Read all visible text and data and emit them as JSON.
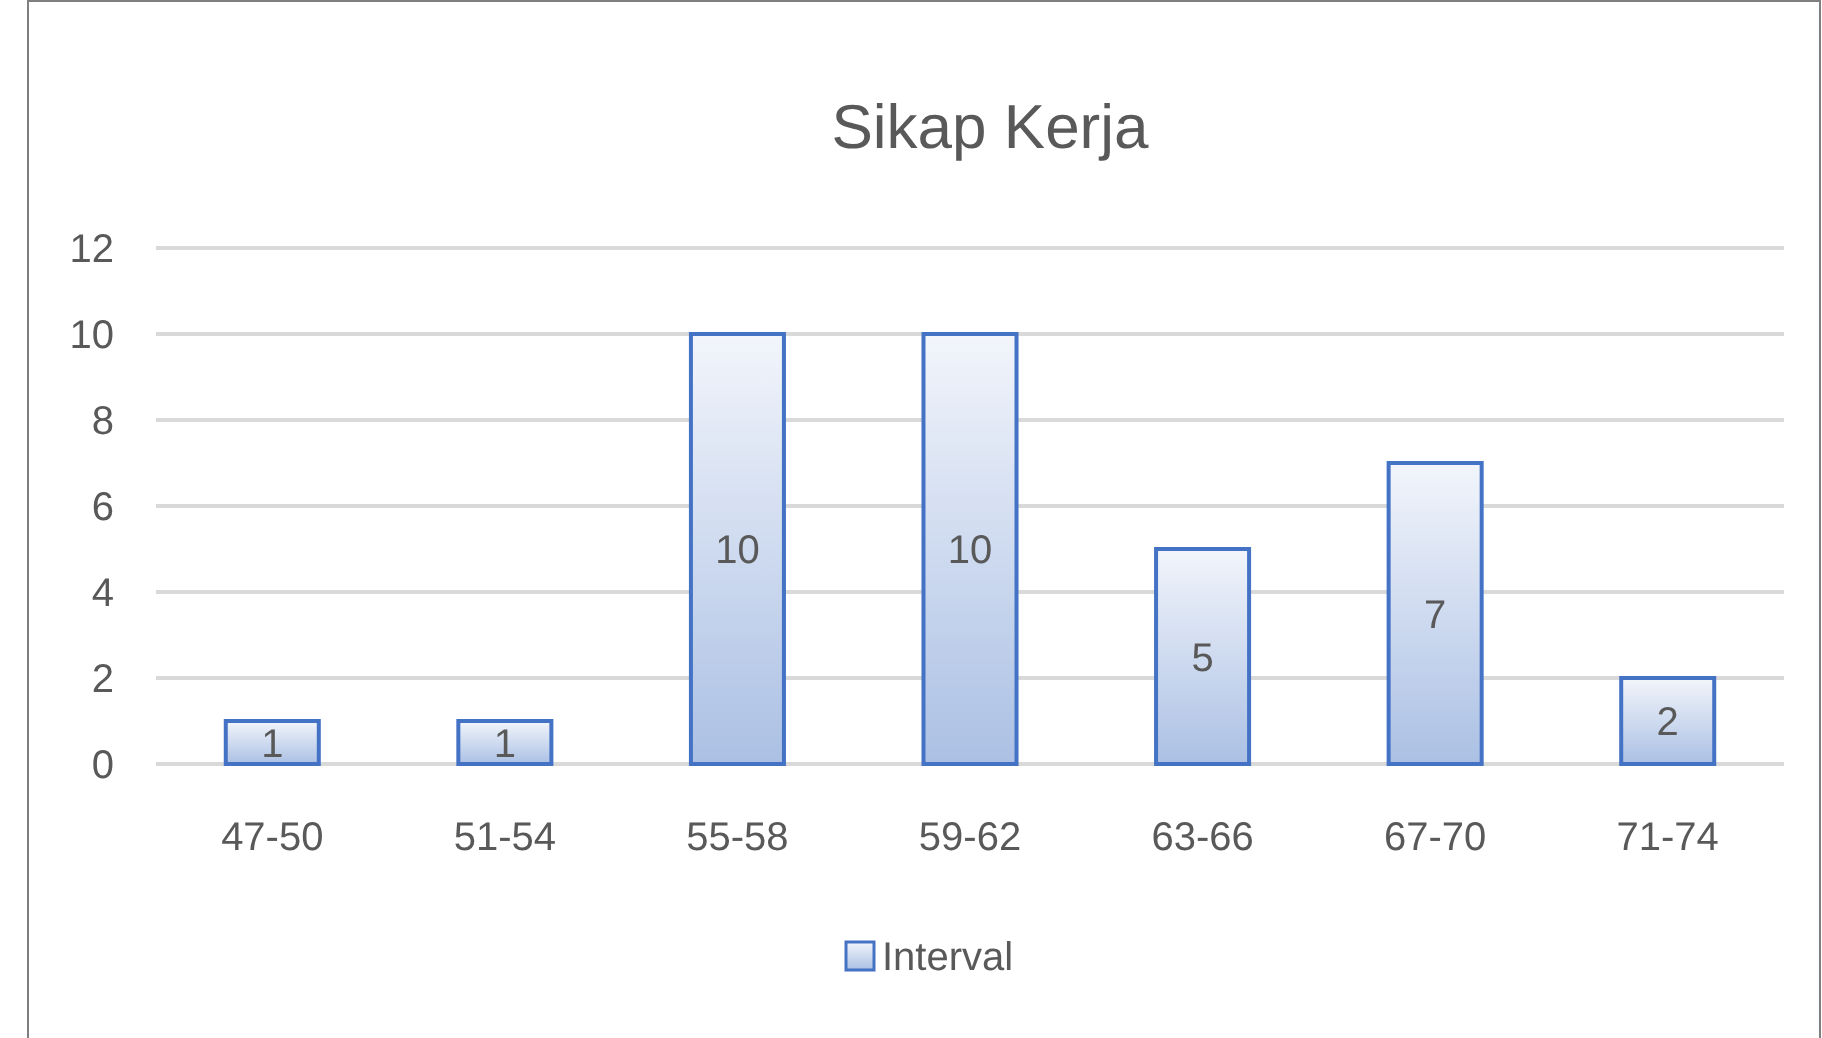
{
  "chart_data": {
    "type": "bar",
    "title": "Sikap Kerja",
    "categories": [
      "47-50",
      "51-54",
      "55-58",
      "59-62",
      "63-66",
      "67-70",
      "71-74"
    ],
    "series": [
      {
        "name": "Interval",
        "color": "#4472c4",
        "values": [
          1,
          1,
          10,
          10,
          5,
          7,
          2
        ]
      }
    ],
    "ylim": [
      0,
      12
    ],
    "yticks": [
      0,
      2,
      4,
      6,
      8,
      10,
      12
    ],
    "grid": "y",
    "legend": "bottom",
    "data_labels": true
  }
}
